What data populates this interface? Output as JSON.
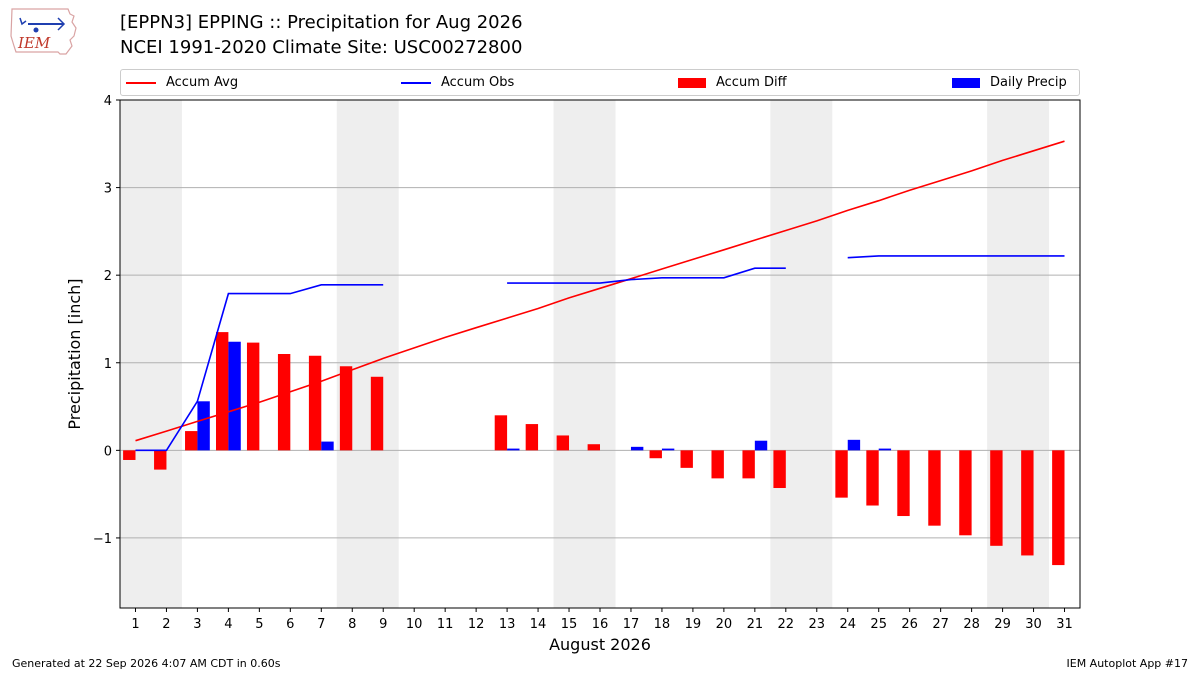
{
  "header": {
    "title_line1": "[EPPN3] EPPING :: Precipitation for Aug 2026",
    "title_line2": "NCEI 1991-2020 Climate Site: USC00272800",
    "logo_text": "IEM"
  },
  "footer": {
    "left": "Generated at 22 Sep 2026 4:07 AM CDT in 0.60s",
    "right": "IEM Autoplot App #17"
  },
  "colors": {
    "accum_avg": "#ff0000",
    "accum_obs": "#0000ff",
    "accum_diff": "#ff0000",
    "daily_precip": "#0000ff",
    "weekend_shade": "#eeeeee",
    "grid": "#b0b0b0"
  },
  "chart_data": {
    "type": "bar",
    "title": "[EPPN3] EPPING :: Precipitation for Aug 2026",
    "subtitle": "NCEI 1991-2020 Climate Site: USC00272800",
    "xlabel": "August 2026",
    "ylabel": "Precipitation [inch]",
    "ylim": [
      -1.8,
      4.0
    ],
    "xlim": [
      0.5,
      31.5
    ],
    "yticks": [
      -1,
      0,
      1,
      2,
      3,
      4
    ],
    "ytick_labels": [
      "−1",
      "0",
      "1",
      "2",
      "3",
      "4"
    ],
    "categories": [
      "1",
      "2",
      "3",
      "4",
      "5",
      "6",
      "7",
      "8",
      "9",
      "10",
      "11",
      "12",
      "13",
      "14",
      "15",
      "16",
      "17",
      "18",
      "19",
      "20",
      "21",
      "22",
      "23",
      "24",
      "25",
      "26",
      "27",
      "28",
      "29",
      "30",
      "31"
    ],
    "grid": "horizontal",
    "legend_position": "top",
    "shaded_day_ranges": [
      [
        0.5,
        2.5
      ],
      [
        7.5,
        9.5
      ],
      [
        14.5,
        16.5
      ],
      [
        21.5,
        23.5
      ],
      [
        28.5,
        30.5
      ]
    ],
    "legend": [
      {
        "name": "Accum Avg",
        "kind": "line",
        "color": "#ff0000"
      },
      {
        "name": "Accum Obs",
        "kind": "line",
        "color": "#0000ff"
      },
      {
        "name": "Accum Diff",
        "kind": "bar",
        "color": "#ff0000"
      },
      {
        "name": "Daily Precip",
        "kind": "bar",
        "color": "#0000ff"
      }
    ],
    "series": [
      {
        "name": "Accum Avg",
        "kind": "line",
        "color": "#ff0000",
        "values": [
          0.11,
          0.22,
          0.33,
          0.44,
          0.55,
          0.67,
          0.79,
          0.92,
          1.05,
          1.17,
          1.29,
          1.4,
          1.51,
          1.62,
          1.74,
          1.85,
          1.96,
          2.07,
          2.18,
          2.29,
          2.4,
          2.51,
          2.62,
          2.74,
          2.85,
          2.97,
          3.08,
          3.19,
          3.31,
          3.42,
          3.53
        ]
      },
      {
        "name": "Accum Obs",
        "kind": "line",
        "color": "#0000ff",
        "values": [
          0.0,
          0.0,
          0.56,
          1.79,
          1.79,
          1.79,
          1.89,
          1.89,
          1.89,
          null,
          null,
          null,
          1.91,
          1.91,
          1.91,
          1.91,
          1.95,
          1.97,
          1.97,
          1.97,
          2.08,
          2.08,
          null,
          2.2,
          2.22,
          2.22,
          2.22,
          2.22,
          2.22,
          2.22,
          2.22
        ]
      },
      {
        "name": "Accum Diff",
        "kind": "bar",
        "color": "#ff0000",
        "values": [
          -0.11,
          -0.22,
          0.22,
          1.35,
          1.23,
          1.1,
          1.08,
          0.96,
          0.84,
          null,
          null,
          null,
          0.4,
          0.3,
          0.17,
          0.07,
          0.0,
          -0.09,
          -0.2,
          -0.32,
          -0.32,
          -0.43,
          null,
          -0.54,
          -0.63,
          -0.75,
          -0.86,
          -0.97,
          -1.09,
          -1.2,
          -1.31
        ]
      },
      {
        "name": "Daily Precip",
        "kind": "bar",
        "color": "#0000ff",
        "values": [
          0.0,
          0.0,
          0.56,
          1.24,
          0.0,
          0.0,
          0.1,
          0.0,
          0.0,
          null,
          null,
          null,
          0.02,
          0.0,
          0.0,
          0.0,
          0.04,
          0.02,
          0.0,
          0.0,
          0.11,
          0.0,
          null,
          0.12,
          0.02,
          0.0,
          0.0,
          0.0,
          0.0,
          0.0,
          0.0
        ]
      }
    ]
  }
}
